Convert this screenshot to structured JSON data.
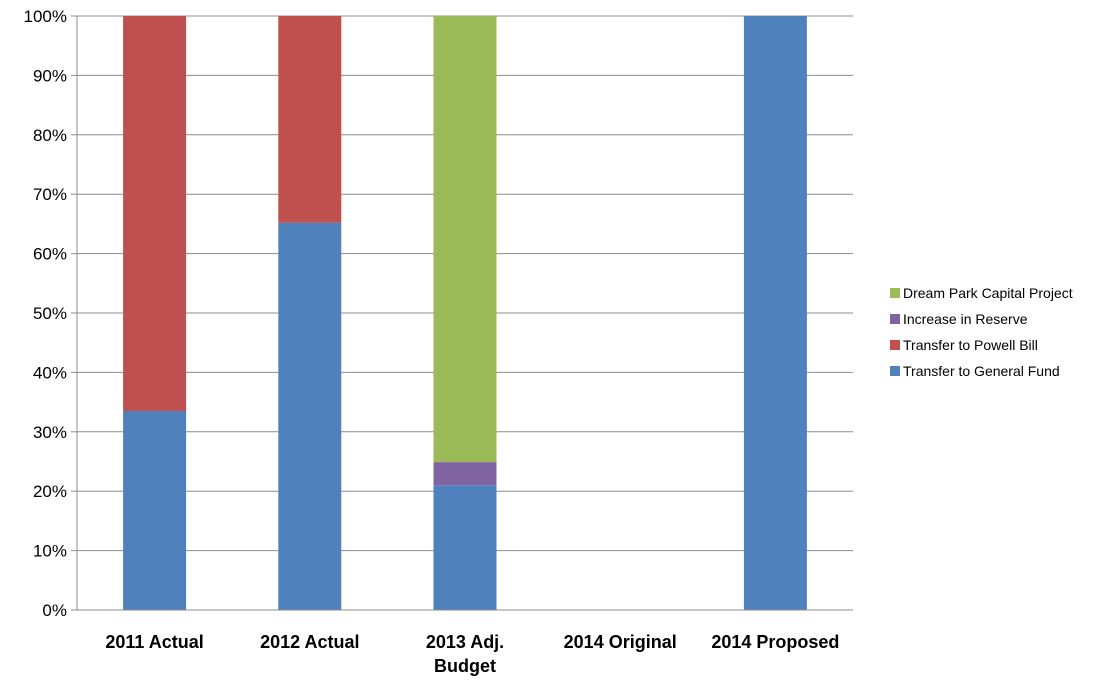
{
  "chart_data": {
    "type": "bar",
    "stacked": true,
    "percent_stacked": true,
    "categories": [
      [
        "2011 Actual"
      ],
      [
        "2012 Actual"
      ],
      [
        "2013 Adj.",
        "Budget"
      ],
      [
        "2014 Original"
      ],
      [
        "2014 Proposed"
      ]
    ],
    "series": [
      {
        "name": "Transfer to General Fund",
        "color": "#4F81BD",
        "values": [
          33.5,
          65.2,
          21.0,
          0,
          100
        ]
      },
      {
        "name": "Transfer to Powell Bill",
        "color": "#C0504D",
        "values": [
          66.5,
          34.8,
          0,
          0,
          0
        ]
      },
      {
        "name": "Increase in Reserve",
        "color": "#8064A2",
        "values": [
          0,
          0,
          3.9,
          0,
          0
        ]
      },
      {
        "name": "Dream Park Capital Project",
        "color": "#9BBB59",
        "values": [
          0,
          0,
          75.1,
          0,
          0
        ]
      }
    ],
    "yticks": [
      "0%",
      "10%",
      "20%",
      "30%",
      "40%",
      "50%",
      "60%",
      "70%",
      "80%",
      "90%",
      "100%"
    ],
    "ylim": [
      0,
      100
    ],
    "grid": true,
    "legend_position": "right",
    "legend_order": [
      "Dream Park Capital Project",
      "Increase in Reserve",
      "Transfer to Powell Bill",
      "Transfer to General Fund"
    ]
  }
}
